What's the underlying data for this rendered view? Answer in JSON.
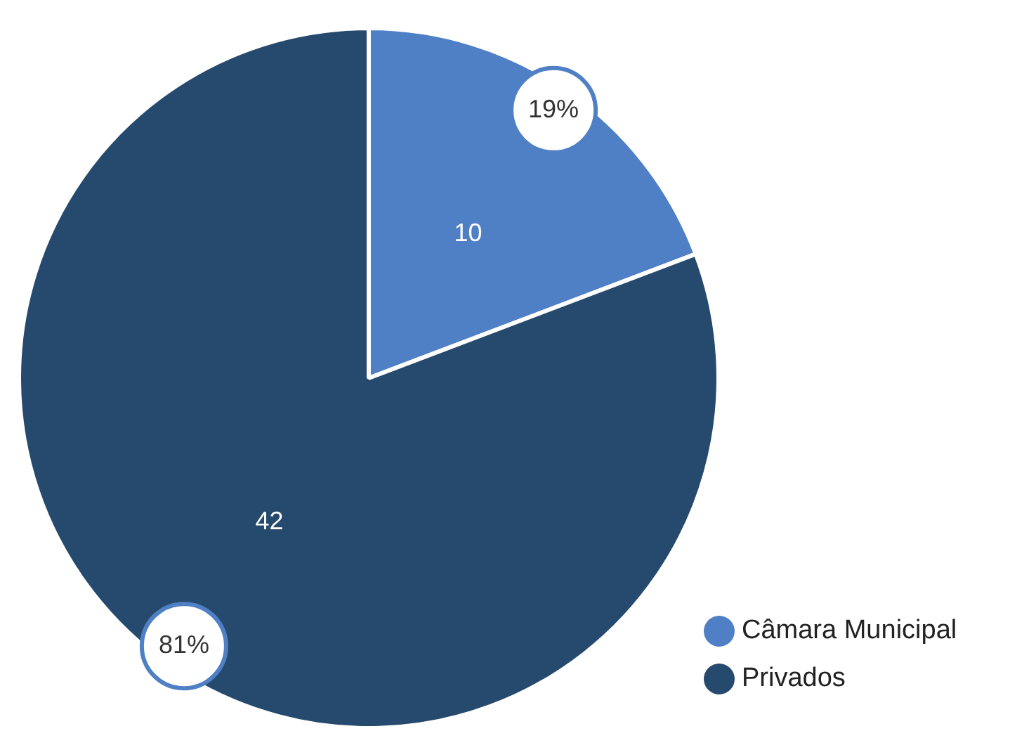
{
  "chart_data": {
    "type": "pie",
    "categories": [
      "Câmara Municipal",
      "Privados"
    ],
    "values": [
      10,
      42
    ],
    "colors": [
      "#4f7fc4",
      "#264a6e"
    ],
    "data_labels": true,
    "annotations": [
      "19%",
      "81%"
    ],
    "legend": "bottom right"
  }
}
